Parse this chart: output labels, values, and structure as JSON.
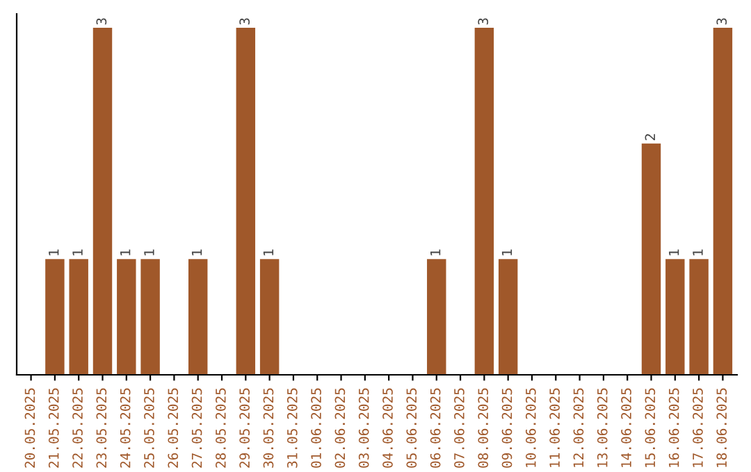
{
  "chart_data": {
    "type": "bar",
    "categories": [
      "20.05.2025",
      "21.05.2025",
      "22.05.2025",
      "23.05.2025",
      "24.05.2025",
      "25.05.2025",
      "26.05.2025",
      "27.05.2025",
      "28.05.2025",
      "29.05.2025",
      "30.05.2025",
      "31.05.2025",
      "01.06.2025",
      "02.06.2025",
      "03.06.2025",
      "04.06.2025",
      "05.06.2025",
      "06.06.2025",
      "07.06.2025",
      "08.06.2025",
      "09.06.2025",
      "10.06.2025",
      "11.06.2025",
      "12.06.2025",
      "13.06.2025",
      "14.06.2025",
      "15.06.2025",
      "16.06.2025",
      "17.06.2025",
      "18.06.2025"
    ],
    "values": [
      0,
      1,
      1,
      3,
      1,
      1,
      0,
      1,
      0,
      3,
      1,
      0,
      0,
      0,
      0,
      0,
      0,
      1,
      0,
      3,
      1,
      0,
      0,
      0,
      0,
      0,
      2,
      1,
      1,
      3
    ],
    "value_labels": [
      null,
      "1",
      "1",
      "3",
      "1",
      "1",
      null,
      "1",
      null,
      "3",
      "1",
      null,
      null,
      null,
      null,
      null,
      null,
      "1",
      null,
      "3",
      "1",
      null,
      null,
      null,
      null,
      null,
      "2",
      "1",
      "1",
      "3"
    ],
    "color": "#a0582a",
    "ylim": [
      0,
      3.12
    ],
    "tick_labels": "x",
    "grid": false,
    "legend": false
  }
}
